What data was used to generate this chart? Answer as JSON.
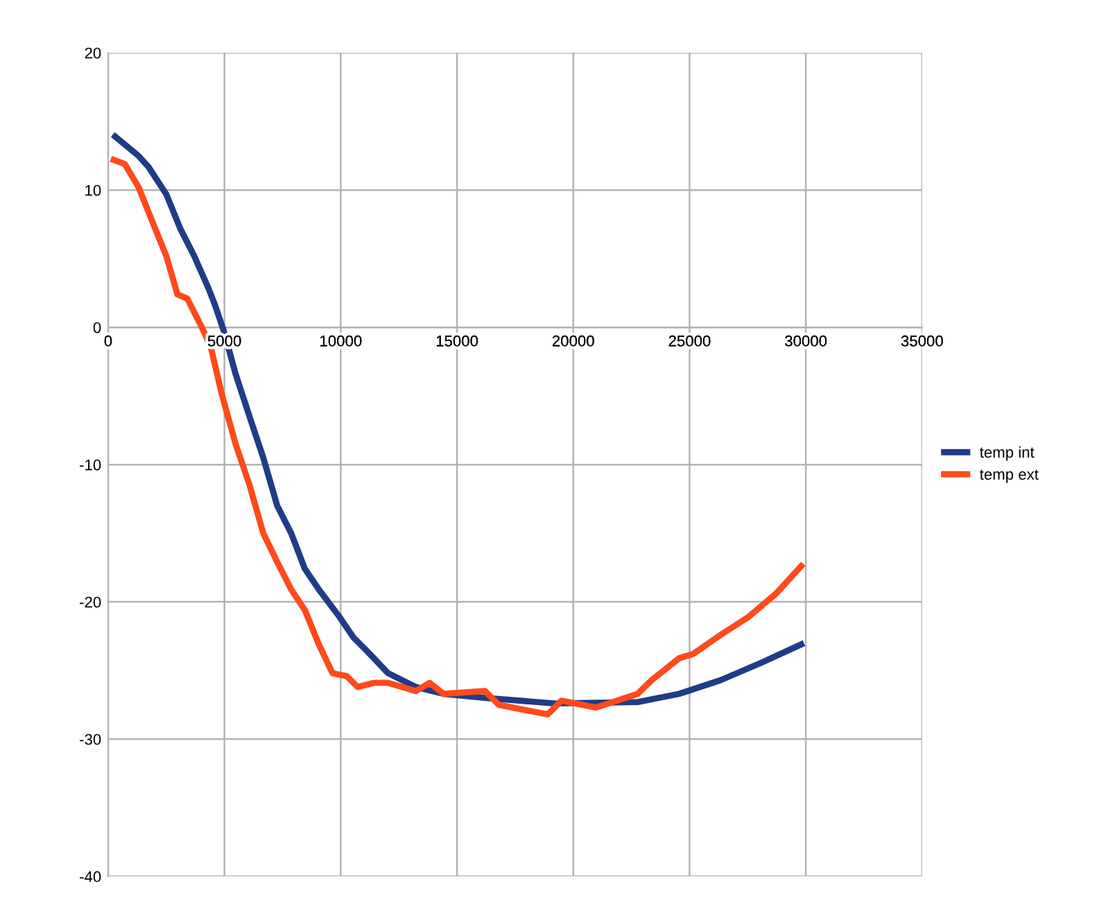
{
  "chart_data": {
    "type": "line",
    "xlim": [
      0,
      35000
    ],
    "ylim": [
      -40,
      20
    ],
    "xticks": [
      0,
      5000,
      10000,
      15000,
      20000,
      25000,
      30000,
      35000
    ],
    "yticks": [
      -40,
      -30,
      -20,
      -10,
      0,
      10,
      20
    ],
    "grid": true,
    "legend": "right",
    "marker": "none",
    "line_style": "solid",
    "series": [
      {
        "name": "temp int",
        "color": "#1f3c88",
        "x": [
          300,
          1300,
          1730,
          2500,
          3100,
          3700,
          4300,
          4600,
          5000,
          5480,
          6080,
          6670,
          7270,
          7870,
          8460,
          9060,
          9950,
          10550,
          11140,
          12040,
          13230,
          14420,
          16210,
          19190,
          22770,
          24560,
          26340,
          28130,
          29800
        ],
        "values": [
          13.9,
          12.5,
          11.7,
          9.7,
          7.2,
          5.2,
          2.9,
          1.6,
          -0.4,
          -3.4,
          -6.5,
          -9.5,
          -13,
          -15,
          -17.6,
          -19.1,
          -21.1,
          -22.6,
          -23.6,
          -25.2,
          -26.2,
          -26.7,
          -27,
          -27.4,
          -27.3,
          -26.7,
          -25.7,
          -24.4,
          -23.1
        ]
      },
      {
        "name": "temp ext",
        "color": "#ff4a1c",
        "x": [
          240,
          715,
          1310,
          1900,
          2500,
          2980,
          3400,
          4000,
          4410,
          4890,
          5480,
          6080,
          6670,
          7270,
          7870,
          8460,
          9060,
          9650,
          10250,
          10730,
          11440,
          12040,
          13230,
          13830,
          14420,
          16210,
          16800,
          18000,
          18900,
          19490,
          20380,
          20980,
          21870,
          22770,
          23370,
          24560,
          25150,
          26340,
          27530,
          28720,
          29800
        ],
        "values": [
          12.2,
          11.9,
          10.2,
          7.7,
          5.2,
          2.4,
          2.1,
          0.1,
          -1.4,
          -4.9,
          -8.5,
          -11.5,
          -15,
          -17.1,
          -19.1,
          -20.6,
          -23.1,
          -25.2,
          -25.4,
          -26.2,
          -25.9,
          -25.9,
          -26.5,
          -25.9,
          -26.7,
          -26.5,
          -27.5,
          -27.9,
          -28.2,
          -27.2,
          -27.5,
          -27.7,
          -27.2,
          -26.7,
          -25.7,
          -24.1,
          -23.8,
          -22.4,
          -21.1,
          -19.4,
          -17.4
        ]
      }
    ]
  }
}
